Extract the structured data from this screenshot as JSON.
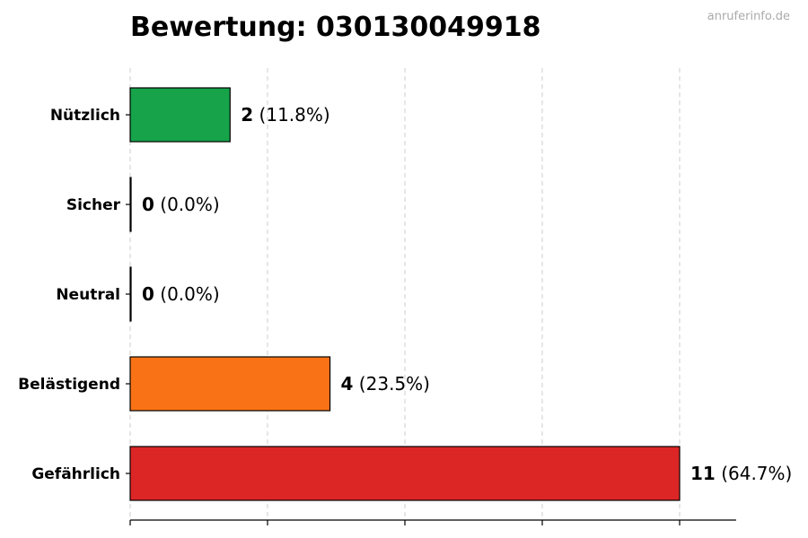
{
  "watermark": "anruferinfo.de",
  "chart_data": {
    "type": "bar",
    "orientation": "horizontal",
    "title": "Bewertung: 030130049918",
    "xlabel": "",
    "ylabel": "",
    "xlim": [
      0,
      11
    ],
    "grid": "x",
    "categories": [
      "Nützlich",
      "Sicher",
      "Neutral",
      "Belästigend",
      "Gefährlich"
    ],
    "values": [
      2,
      0,
      0,
      4,
      11
    ],
    "labels": [
      "(11.8%)",
      "(0.0%)",
      "(0.0%)",
      "(23.5%)",
      "(64.7%)"
    ],
    "colors": [
      "#16a34a",
      "#16a34a",
      "#888888",
      "#f97316",
      "#dc2626"
    ]
  }
}
